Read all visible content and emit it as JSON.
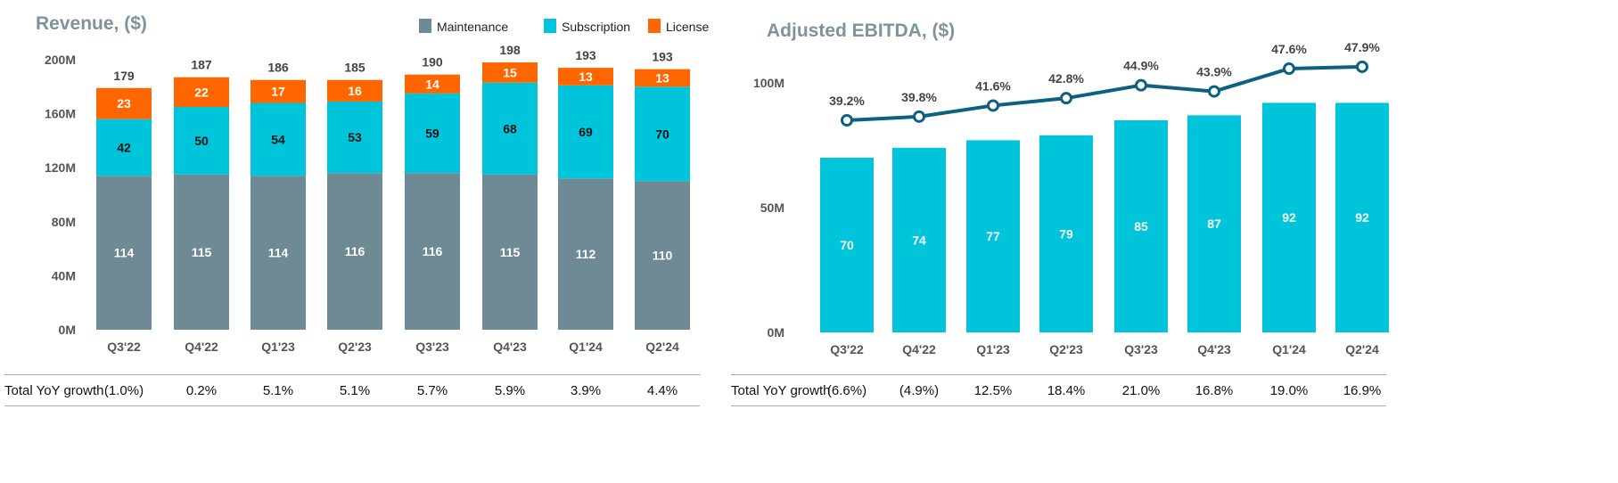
{
  "chart_data": [
    {
      "type": "bar",
      "stacked": true,
      "title": "Revenue, ($)",
      "categories": [
        "Q3'22",
        "Q4'22",
        "Q1'23",
        "Q2'23",
        "Q3'23",
        "Q4'23",
        "Q1'24",
        "Q2'24"
      ],
      "series": [
        {
          "name": "Maintenance",
          "color": "#6e8a94",
          "values": [
            114,
            115,
            114,
            116,
            116,
            115,
            112,
            110
          ]
        },
        {
          "name": "Subscription",
          "color": "#00c5da",
          "values": [
            42,
            50,
            54,
            53,
            59,
            68,
            69,
            70
          ]
        },
        {
          "name": "License",
          "color": "#ff6600",
          "values": [
            23,
            22,
            17,
            16,
            14,
            15,
            13,
            13
          ]
        }
      ],
      "totals": [
        179,
        187,
        186,
        185,
        190,
        198,
        193,
        193
      ],
      "yticks": [
        "0M",
        "40M",
        "80M",
        "120M",
        "160M",
        "200M"
      ],
      "ylim": [
        0,
        200
      ],
      "legend": "top-right",
      "row_label": "Total YoY growth",
      "row_values": [
        "(1.0%)",
        "0.2%",
        "5.1%",
        "5.1%",
        "5.7%",
        "5.9%",
        "3.9%",
        "4.4%"
      ]
    },
    {
      "type": "bar",
      "title": "Adjusted EBITDA, ($)",
      "categories": [
        "Q3'22",
        "Q4'22",
        "Q1'23",
        "Q2'23",
        "Q3'23",
        "Q4'23",
        "Q1'24",
        "Q2'24"
      ],
      "bar_color": "#00c5da",
      "values": [
        70,
        74,
        77,
        79,
        85,
        87,
        92,
        92
      ],
      "line": {
        "color": "#0e6080",
        "labels": [
          "39.2%",
          "39.8%",
          "41.6%",
          "42.8%",
          "44.9%",
          "43.9%",
          "47.6%",
          "47.9%"
        ],
        "values": [
          39.2,
          39.8,
          41.6,
          42.8,
          44.9,
          43.9,
          47.6,
          47.9
        ]
      },
      "yticks": [
        "0M",
        "50M",
        "100M"
      ],
      "ylim": [
        0,
        100
      ],
      "row_label": "Total YoY growth",
      "row_values": [
        "(6.6%)",
        "(4.9%)",
        "12.5%",
        "18.4%",
        "21.0%",
        "16.8%",
        "19.0%",
        "16.9%"
      ]
    }
  ]
}
